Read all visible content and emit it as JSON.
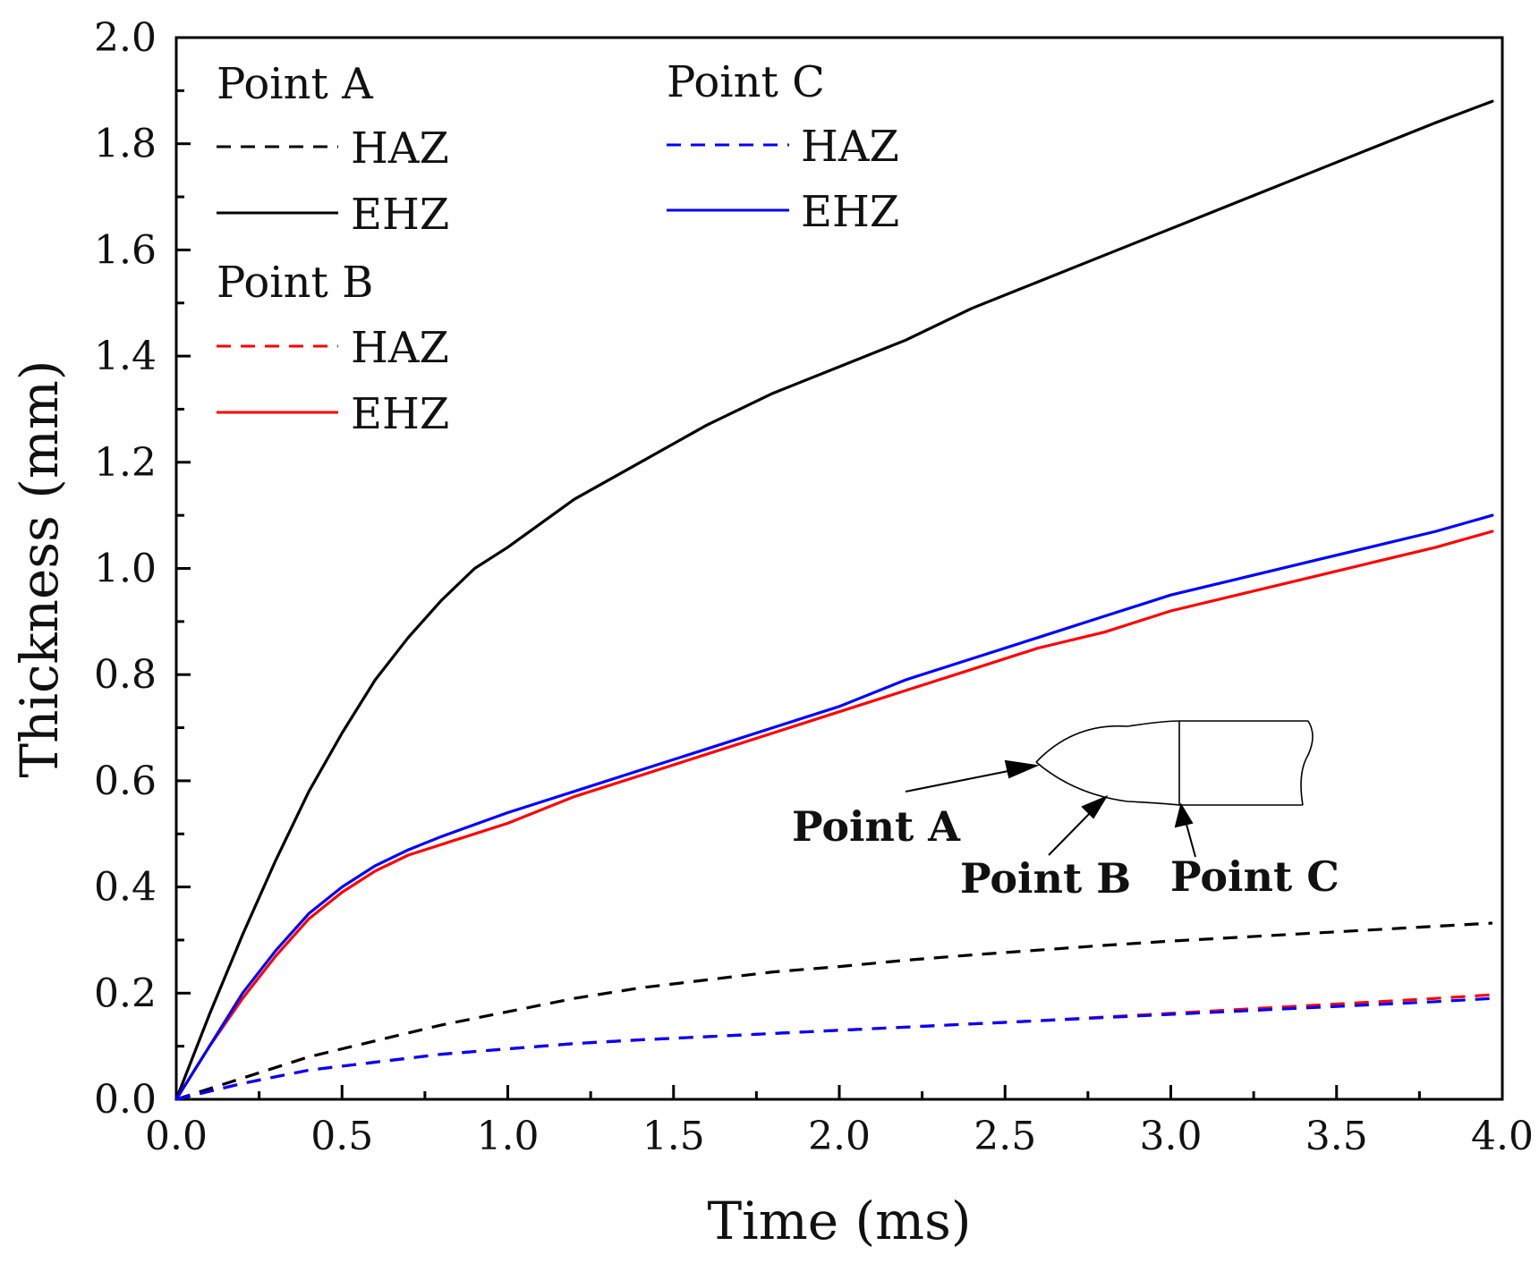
{
  "chart_data": {
    "type": "line",
    "title": "",
    "xlabel": "Time (ms)",
    "ylabel": "Thickness (mm)",
    "xlim": [
      0,
      4.0
    ],
    "ylim": [
      0,
      2.0
    ],
    "xticks": [
      "0.0",
      "0.5",
      "1.0",
      "1.5",
      "2.0",
      "2.5",
      "3.0",
      "3.5",
      "4.0"
    ],
    "yticks": [
      "0.0",
      "0.2",
      "0.4",
      "0.6",
      "0.8",
      "1.0",
      "1.2",
      "1.4",
      "1.6",
      "1.8",
      "2.0"
    ],
    "grid": false,
    "legend": {
      "placement": "top-left",
      "groups": [
        {
          "title": "Point A",
          "entries": [
            {
              "label": "HAZ",
              "color": "#000000",
              "style": "dashed"
            },
            {
              "label": "EHZ",
              "color": "#000000",
              "style": "solid"
            }
          ]
        },
        {
          "title": "Point B",
          "entries": [
            {
              "label": "HAZ",
              "color": "#ff0000",
              "style": "dashed"
            },
            {
              "label": "EHZ",
              "color": "#ff0000",
              "style": "solid"
            }
          ]
        },
        {
          "title": "Point C",
          "entries": [
            {
              "label": "HAZ",
              "color": "#0000ff",
              "style": "dashed"
            },
            {
              "label": "EHZ",
              "color": "#0000ff",
              "style": "solid"
            }
          ]
        }
      ]
    },
    "series": [
      {
        "name": "Point A EHZ",
        "color": "#000000",
        "style": "solid",
        "x": [
          0,
          0.1,
          0.2,
          0.3,
          0.4,
          0.5,
          0.6,
          0.7,
          0.8,
          0.9,
          1.0,
          1.2,
          1.4,
          1.6,
          1.8,
          2.0,
          2.2,
          2.4,
          2.6,
          2.8,
          3.0,
          3.2,
          3.4,
          3.6,
          3.8,
          3.97
        ],
        "y": [
          0,
          0.16,
          0.31,
          0.45,
          0.58,
          0.69,
          0.79,
          0.87,
          0.94,
          1.0,
          1.04,
          1.13,
          1.2,
          1.27,
          1.33,
          1.38,
          1.43,
          1.49,
          1.54,
          1.59,
          1.64,
          1.69,
          1.74,
          1.79,
          1.84,
          1.88
        ]
      },
      {
        "name": "Point A HAZ",
        "color": "#000000",
        "style": "dashed",
        "x": [
          0,
          0.2,
          0.4,
          0.6,
          0.8,
          1.0,
          1.2,
          1.4,
          1.6,
          1.8,
          2.0,
          2.2,
          2.4,
          2.6,
          2.8,
          3.0,
          3.2,
          3.4,
          3.6,
          3.8,
          3.97
        ],
        "y": [
          0,
          0.04,
          0.08,
          0.11,
          0.14,
          0.165,
          0.19,
          0.21,
          0.225,
          0.24,
          0.25,
          0.262,
          0.272,
          0.281,
          0.29,
          0.298,
          0.305,
          0.312,
          0.319,
          0.326,
          0.332
        ]
      },
      {
        "name": "Point B EHZ",
        "color": "#ff0000",
        "style": "solid",
        "x": [
          0,
          0.1,
          0.2,
          0.3,
          0.4,
          0.5,
          0.6,
          0.7,
          0.8,
          1.0,
          1.2,
          1.4,
          1.6,
          1.8,
          2.0,
          2.2,
          2.4,
          2.6,
          2.8,
          3.0,
          3.2,
          3.4,
          3.6,
          3.8,
          3.97
        ],
        "y": [
          0,
          0.1,
          0.19,
          0.27,
          0.34,
          0.39,
          0.43,
          0.46,
          0.48,
          0.52,
          0.57,
          0.61,
          0.65,
          0.69,
          0.73,
          0.77,
          0.81,
          0.85,
          0.88,
          0.92,
          0.95,
          0.98,
          1.01,
          1.04,
          1.07
        ]
      },
      {
        "name": "Point B HAZ",
        "color": "#ff0000",
        "style": "dashed",
        "x": [
          0,
          0.2,
          0.4,
          0.6,
          0.8,
          1.0,
          1.2,
          1.4,
          1.6,
          1.8,
          2.0,
          2.2,
          2.4,
          2.6,
          2.8,
          3.0,
          3.2,
          3.4,
          3.6,
          3.8,
          3.97
        ],
        "y": [
          0,
          0.03,
          0.055,
          0.07,
          0.085,
          0.095,
          0.105,
          0.112,
          0.118,
          0.124,
          0.13,
          0.136,
          0.142,
          0.148,
          0.155,
          0.162,
          0.169,
          0.176,
          0.183,
          0.19,
          0.197
        ]
      },
      {
        "name": "Point C EHZ",
        "color": "#0000ff",
        "style": "solid",
        "x": [
          0,
          0.1,
          0.2,
          0.3,
          0.4,
          0.5,
          0.6,
          0.7,
          0.8,
          1.0,
          1.2,
          1.4,
          1.6,
          1.8,
          2.0,
          2.2,
          2.4,
          2.6,
          2.8,
          3.0,
          3.2,
          3.4,
          3.6,
          3.8,
          3.97
        ],
        "y": [
          0,
          0.1,
          0.2,
          0.28,
          0.35,
          0.4,
          0.44,
          0.47,
          0.495,
          0.54,
          0.58,
          0.62,
          0.66,
          0.7,
          0.74,
          0.79,
          0.83,
          0.87,
          0.91,
          0.95,
          0.98,
          1.01,
          1.04,
          1.07,
          1.1
        ]
      },
      {
        "name": "Point C HAZ",
        "color": "#0000ff",
        "style": "dashed",
        "x": [
          0,
          0.2,
          0.4,
          0.6,
          0.8,
          1.0,
          1.2,
          1.4,
          1.6,
          1.8,
          2.0,
          2.2,
          2.4,
          2.6,
          2.8,
          3.0,
          3.2,
          3.4,
          3.6,
          3.8,
          3.97
        ],
        "y": [
          0,
          0.03,
          0.055,
          0.07,
          0.085,
          0.095,
          0.105,
          0.112,
          0.118,
          0.124,
          0.13,
          0.136,
          0.142,
          0.148,
          0.154,
          0.16,
          0.166,
          0.172,
          0.178,
          0.184,
          0.19
        ]
      }
    ],
    "annotations": {
      "point_a": "Point A",
      "point_b": "Point B",
      "point_c": "Point C"
    }
  }
}
